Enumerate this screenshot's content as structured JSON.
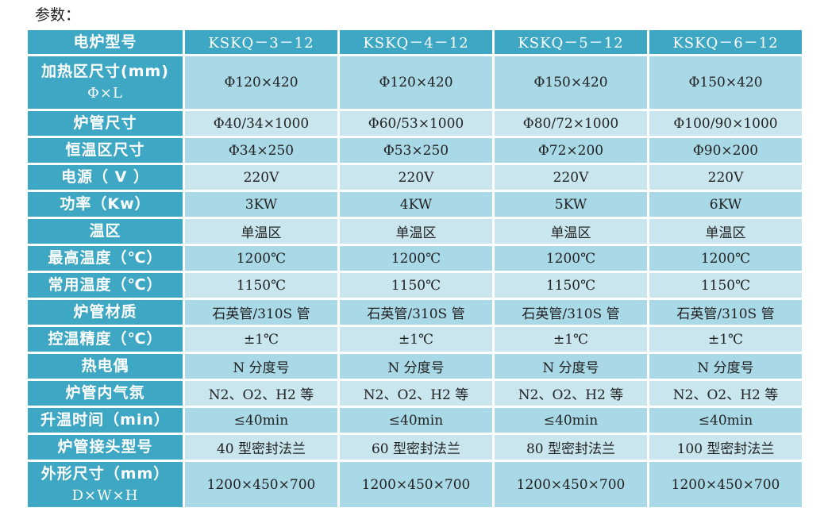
{
  "title": "参数：",
  "header": {
    "label": "电炉型号",
    "models": [
      "KSKQ－3－12",
      "KSKQ－4－12",
      "KSKQ－5－12",
      "KSKQ－6－12"
    ]
  },
  "rows": [
    {
      "label": "加热区尺寸(mm)",
      "label2": "Φ×L",
      "values": [
        "Φ120×420",
        "Φ120×420",
        "Φ150×420",
        "Φ150×420"
      ]
    },
    {
      "label": "炉管尺寸",
      "values": [
        "Φ40/34×1000",
        "Φ60/53×1000",
        "Φ80/72×1000",
        "Φ100/90×1000"
      ]
    },
    {
      "label": "恒温区尺寸",
      "values": [
        "Φ34×250",
        "Φ53×250",
        "Φ72×200",
        "Φ90×200"
      ]
    },
    {
      "label": "电源（ V ）",
      "values": [
        "220V",
        "220V",
        "220V",
        "220V"
      ]
    },
    {
      "label": "功率（Kw）",
      "values": [
        "3KW",
        "4KW",
        "5KW",
        "6KW"
      ]
    },
    {
      "label": "温区",
      "values": [
        "单温区",
        "单温区",
        "单温区",
        "单温区"
      ]
    },
    {
      "label": "最高温度（℃）",
      "values": [
        "1200℃",
        "1200℃",
        "1200℃",
        "1200℃"
      ]
    },
    {
      "label": "常用温度（℃）",
      "values": [
        "1150℃",
        "1150℃",
        "1150℃",
        "1150℃"
      ]
    },
    {
      "label": "炉管材质",
      "values": [
        "石英管/310S 管",
        "石英管/310S 管",
        "石英管/310S 管",
        "石英管/310S 管"
      ]
    },
    {
      "label": "控温精度（℃）",
      "values": [
        "±1℃",
        "±1℃",
        "±1℃",
        "±1℃"
      ]
    },
    {
      "label": "热电偶",
      "values": [
        "N 分度号",
        "N 分度号",
        "N 分度号",
        "N 分度号"
      ]
    },
    {
      "label": "炉管内气氛",
      "values": [
        "N2、O2、H2 等",
        "N2、O2、H2 等",
        "N2、O2、H2 等",
        "N2、O2、H2 等"
      ]
    },
    {
      "label": "升温时间（min）",
      "values": [
        "≤40min",
        "≤40min",
        "≤40min",
        "≤40min"
      ]
    },
    {
      "label": "炉管接头型号",
      "values": [
        "40 型密封法兰",
        "60 型密封法兰",
        "80 型密封法兰",
        "100 型密封法兰"
      ]
    },
    {
      "label": "外形尺寸（mm）",
      "label2": "D×W×H",
      "values": [
        "1200×450×700",
        "1200×450×700",
        "1200×450×700",
        "1200×450×700"
      ]
    }
  ]
}
